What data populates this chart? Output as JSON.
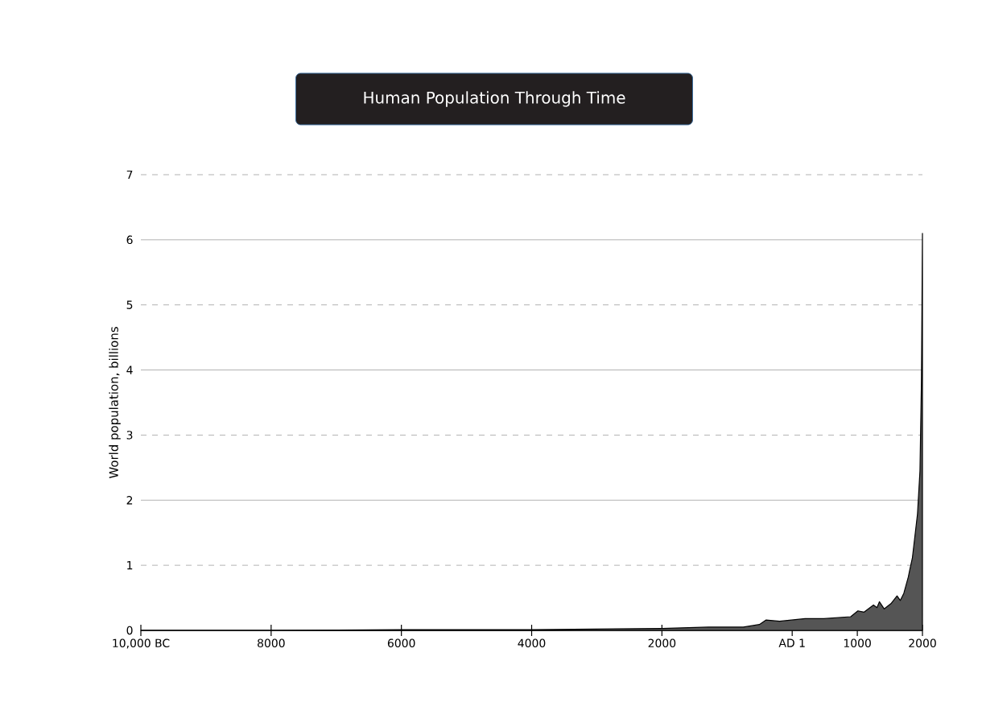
{
  "chart_data": {
    "type": "area",
    "title": "Human Population Through Time",
    "ylabel": "World population, billions",
    "x": [
      -10000,
      -8000,
      -6000,
      -5000,
      -4000,
      -3000,
      -2000,
      -1286,
      -750,
      -503,
      -400,
      -194,
      198,
      486,
      898,
      1009,
      1104,
      1248,
      1302,
      1339,
      1413,
      1516,
      1610,
      1660,
      1714,
      1783,
      1805,
      1845,
      1924,
      1962,
      1985,
      2000
    ],
    "values": [
      0,
      0,
      0.01,
      0.01,
      0.01,
      0.02,
      0.03,
      0.05,
      0.05,
      0.09,
      0.16,
      0.14,
      0.18,
      0.18,
      0.21,
      0.3,
      0.28,
      0.39,
      0.35,
      0.44,
      0.33,
      0.41,
      0.53,
      0.46,
      0.57,
      0.82,
      0.93,
      1.11,
      1.79,
      2.45,
      3.88,
      6.1
    ],
    "color": "#555555",
    "xlim": [
      -10000,
      2000
    ],
    "ylim": [
      0,
      7
    ],
    "xticks": [
      {
        "value": -10000,
        "label": "10,000 BC"
      },
      {
        "value": -8000,
        "label": "8000"
      },
      {
        "value": -6000,
        "label": "6000"
      },
      {
        "value": -4000,
        "label": "4000"
      },
      {
        "value": -2000,
        "label": "2000"
      },
      {
        "value": 0,
        "label": "AD 1"
      },
      1000,
      2000
    ],
    "yticks": [
      0,
      1,
      2,
      3,
      4,
      5,
      6,
      7
    ],
    "grid": "y"
  }
}
